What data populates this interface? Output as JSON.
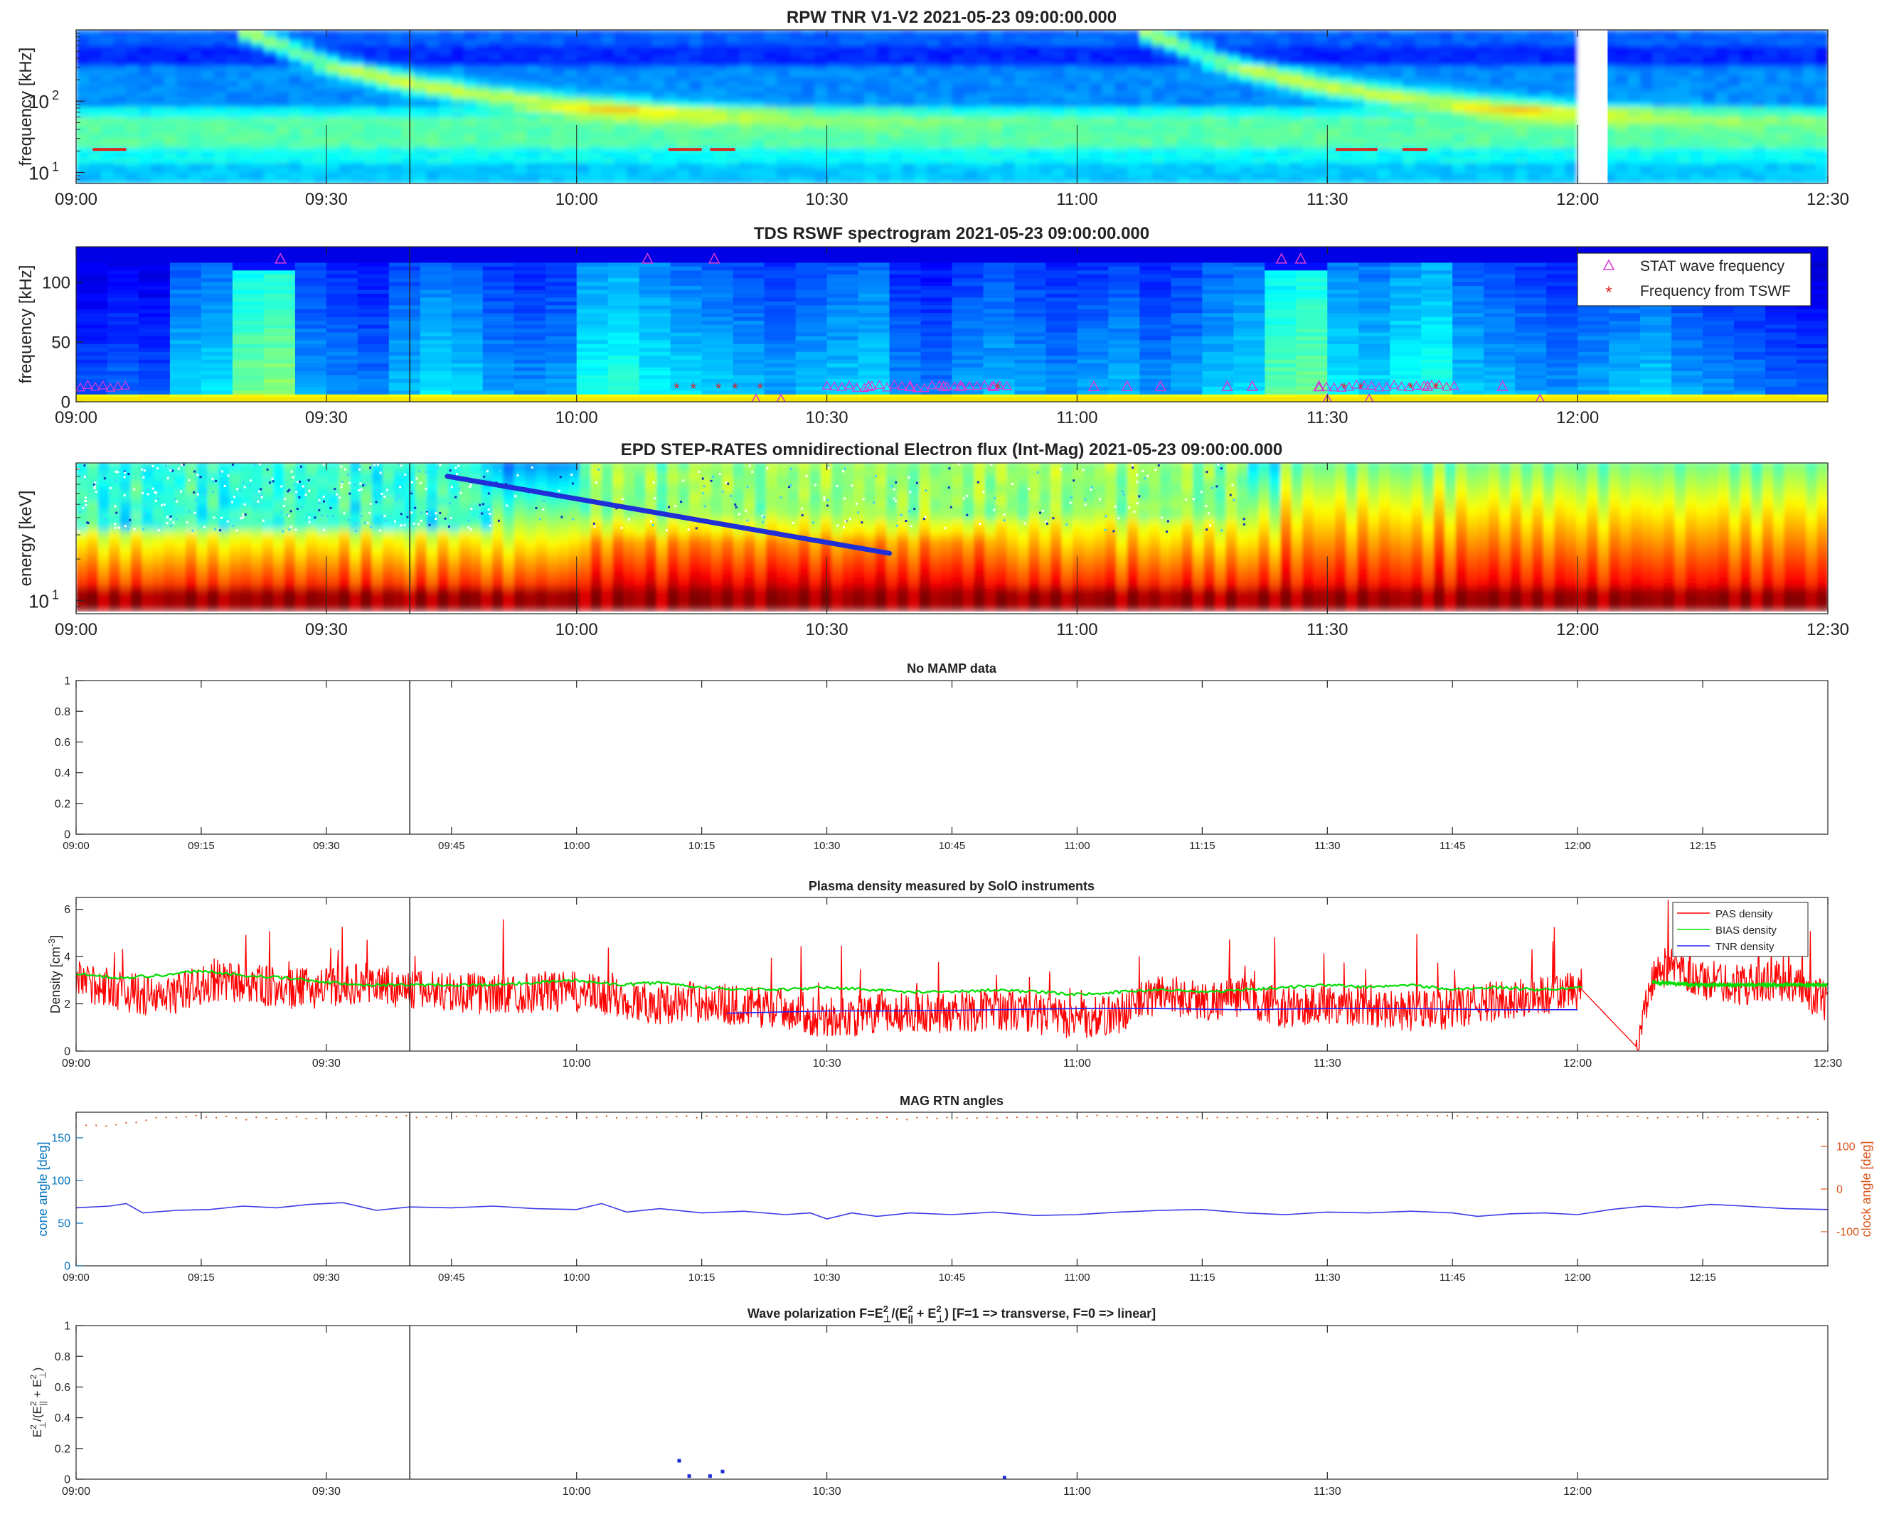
{
  "chart_data": [
    {
      "type": "heatmap",
      "title": "RPW TNR V1-V2 2021-05-23 09:00:00.000",
      "ylabel": "frequency [kHz]",
      "y_scale": "log",
      "y_ticks": [
        {
          "base": "10",
          "exp": "1",
          "value": 10
        },
        {
          "base": "10",
          "exp": "2",
          "value": 100
        }
      ],
      "xlim": [
        0,
        210
      ],
      "ylim": [
        7,
        1000
      ],
      "x_ticks": [
        "09:00",
        "09:30",
        "10:00",
        "10:30",
        "11:00",
        "11:30",
        "12:00",
        "12:30"
      ],
      "x_tick_values": [
        0,
        30,
        60,
        90,
        120,
        150,
        180,
        210
      ],
      "colormap": "jet",
      "data_gaps": [
        [
          179.5,
          182.5
        ]
      ],
      "bursts": [
        {
          "start_min": 20,
          "note": "type III burst drifting from high to low frequency"
        },
        {
          "start_min": 128,
          "note": "type III burst drifting from high to low frequency"
        }
      ],
      "cursor_time": "09:40"
    },
    {
      "type": "heatmap",
      "title": "TDS RSWF spectrogram 2021-05-23 09:00:00.000",
      "ylabel": "frequency [kHz]",
      "ylim": [
        0,
        130
      ],
      "y_ticks": [
        0,
        50,
        100
      ],
      "xlim": [
        0,
        210
      ],
      "x_ticks": [
        "09:00",
        "09:30",
        "10:00",
        "10:30",
        "11:00",
        "11:30",
        "12:00"
      ],
      "x_tick_values": [
        0,
        30,
        60,
        90,
        120,
        150,
        180
      ],
      "legend": [
        "STAT wave frequency",
        "Frequency from TSWF"
      ],
      "legend_location": "top-right",
      "series": [
        {
          "name": "STAT wave frequency",
          "marker": "triangle",
          "color": "#d43cd4",
          "points": [
            [
              24.5,
              120
            ],
            [
              68.5,
              120
            ],
            [
              76.5,
              120
            ],
            [
              144.5,
              120
            ],
            [
              146.8,
              120
            ],
            [
              81.5,
              2
            ],
            [
              84.5,
              2
            ],
            [
              155,
              2
            ],
            [
              175.5,
              2
            ],
            [
              150,
              2
            ],
            [
              171,
              13
            ],
            [
              95,
              13
            ],
            [
              100,
              13
            ],
            [
              104,
              13
            ],
            [
              106,
              13
            ],
            [
              110,
              13
            ],
            [
              122,
              13
            ],
            [
              126,
              13
            ],
            [
              130,
              13
            ],
            [
              138,
              13
            ],
            [
              141,
              13
            ],
            [
              149,
              13
            ],
            [
              162,
              13
            ]
          ]
        },
        {
          "name": "Frequency from TSWF",
          "marker": "asterisk",
          "color": "#e02020",
          "points": [
            [
              72,
              12
            ],
            [
              74,
              12
            ],
            [
              77,
              12
            ],
            [
              79,
              12
            ],
            [
              82,
              12
            ],
            [
              110.5,
              12
            ],
            [
              152,
              12
            ],
            [
              154,
              12
            ],
            [
              160,
              12
            ],
            [
              163,
              12
            ]
          ]
        }
      ],
      "cursor_time": "09:40"
    },
    {
      "type": "heatmap",
      "title": "EPD STEP-RATES omnidirectional Electron flux (Int-Mag) 2021-05-23 09:00:00.000",
      "ylabel": "energy [keV]",
      "y_scale": "log",
      "y_ticks": [
        {
          "base": "10",
          "exp": "1",
          "value": 10
        }
      ],
      "ylim": [
        8,
        100
      ],
      "xlim": [
        0,
        210
      ],
      "x_ticks": [
        "09:00",
        "09:30",
        "10:00",
        "10:30",
        "11:00",
        "11:30",
        "12:00",
        "12:30"
      ],
      "x_tick_values": [
        0,
        30,
        60,
        90,
        120,
        150,
        180,
        210
      ],
      "colormap": "jet",
      "velocity_dispersion_line": {
        "color": "#1f2ed6",
        "from": [
          44.5,
          80
        ],
        "to": [
          97.5,
          22
        ]
      },
      "cursor_time": "09:40"
    },
    {
      "type": "line",
      "title": "No MAMP data",
      "ylim": [
        0,
        1
      ],
      "y_ticks": [
        "0",
        "0.2",
        "0.4",
        "0.6",
        "0.8",
        "1"
      ],
      "y_tick_values": [
        0,
        0.2,
        0.4,
        0.6,
        0.8,
        1
      ],
      "xlim": [
        0,
        210
      ],
      "x_ticks": [
        "09:00",
        "09:15",
        "09:30",
        "09:45",
        "10:00",
        "10:15",
        "10:30",
        "10:45",
        "11:00",
        "11:15",
        "11:30",
        "11:45",
        "12:00",
        "12:15"
      ],
      "x_tick_values": [
        0,
        15,
        30,
        45,
        60,
        75,
        90,
        105,
        120,
        135,
        150,
        165,
        180,
        195
      ],
      "series": [],
      "cursor_time": "09:40"
    },
    {
      "type": "line",
      "title": "Plasma density measured by SolO instruments",
      "ylabel_parts": [
        "Density [cm",
        "-3",
        "]"
      ],
      "ylim": [
        0,
        6.5
      ],
      "y_ticks": [
        "0",
        "2",
        "4",
        "6"
      ],
      "y_tick_values": [
        0,
        2,
        4,
        6
      ],
      "xlim": [
        0,
        210
      ],
      "x_ticks": [
        "09:00",
        "09:30",
        "10:00",
        "10:30",
        "11:00",
        "11:30",
        "12:00",
        "12:30"
      ],
      "x_tick_values": [
        0,
        30,
        60,
        90,
        120,
        150,
        180,
        210
      ],
      "legend": [
        "PAS density",
        "BIAS density",
        "TNR density"
      ],
      "legend_location": "top-right",
      "series": [
        {
          "name": "PAS density",
          "color": "#ff0000",
          "x": [
            0,
            5,
            10,
            15,
            20,
            25,
            30,
            35,
            40,
            45,
            50,
            55,
            60,
            65,
            70,
            75,
            80,
            85,
            90,
            95,
            100,
            105,
            110,
            115,
            120,
            125,
            130,
            135,
            140,
            145,
            150,
            155,
            160,
            165,
            170,
            175,
            180.5,
            187,
            189,
            190,
            195,
            200,
            205,
            210
          ],
          "y": [
            3.0,
            2.6,
            2.2,
            2.8,
            2.9,
            2.6,
            2.7,
            2.9,
            2.6,
            2.5,
            2.4,
            2.5,
            2.5,
            2.2,
            2.0,
            2.1,
            1.9,
            1.8,
            1.4,
            1.5,
            1.7,
            1.6,
            1.8,
            1.6,
            1.3,
            1.6,
            2.5,
            2.1,
            2.3,
            1.8,
            2.0,
            1.9,
            1.7,
            1.8,
            2.1,
            2.3,
            2.6,
            0.2,
            3.0,
            3.6,
            3.0,
            2.8,
            3.0,
            2.0
          ],
          "noise": 1.1
        },
        {
          "name": "BIAS density",
          "color": "#00dd00",
          "x": [
            0,
            5,
            10,
            15,
            20,
            25,
            30,
            35,
            40,
            45,
            50,
            55,
            60,
            65,
            70,
            75,
            80,
            85,
            90,
            95,
            100,
            105,
            110,
            115,
            120,
            125,
            130,
            135,
            140,
            145,
            150,
            155,
            160,
            165,
            170,
            175,
            180.5
          ],
          "y": [
            3.3,
            3.1,
            3.2,
            3.4,
            3.2,
            3.1,
            2.9,
            2.8,
            2.8,
            2.8,
            2.8,
            2.9,
            3.0,
            2.8,
            2.9,
            2.7,
            2.6,
            2.6,
            2.7,
            2.6,
            2.5,
            2.5,
            2.6,
            2.5,
            2.4,
            2.5,
            2.6,
            2.5,
            2.6,
            2.7,
            2.8,
            2.7,
            2.8,
            2.6,
            2.7,
            2.6,
            2.7
          ],
          "noise": 0.12
        },
        {
          "name": "BIAS density (after gap)",
          "color": "#00dd00",
          "x": [
            189,
            195,
            200,
            205,
            210
          ],
          "y": [
            2.9,
            2.8,
            2.8,
            2.8,
            2.8
          ],
          "noise": 0.1
        },
        {
          "name": "TNR density",
          "color": "#2020ff",
          "x": [
            78,
            90,
            100,
            110,
            120,
            130,
            140,
            150,
            160,
            170,
            180
          ],
          "y": [
            1.6,
            1.7,
            1.7,
            1.75,
            1.8,
            1.8,
            1.75,
            1.8,
            1.8,
            1.75,
            1.75
          ],
          "noise": 0
        }
      ],
      "cursor_time": "09:40"
    },
    {
      "type": "line",
      "title": "MAG RTN angles",
      "ylabel": "cone angle [deg]",
      "y2label": "clock angle [deg]",
      "ylim": [
        0,
        180
      ],
      "y_ticks": [
        "0",
        "50",
        "100",
        "150"
      ],
      "y_tick_values": [
        0,
        50,
        100,
        150
      ],
      "y2lim": [
        -180,
        180
      ],
      "y2_ticks": [
        "-100",
        "0",
        "100"
      ],
      "y2_tick_values": [
        -100,
        0,
        100
      ],
      "xlim": [
        0,
        210
      ],
      "x_ticks": [
        "09:00",
        "09:15",
        "09:30",
        "09:45",
        "10:00",
        "10:15",
        "10:30",
        "10:45",
        "11:00",
        "11:15",
        "11:30",
        "11:45",
        "12:00",
        "12:15"
      ],
      "x_tick_values": [
        0,
        15,
        30,
        45,
        60,
        75,
        90,
        105,
        120,
        135,
        150,
        165,
        180,
        195
      ],
      "left_axis_color": "#0072bd",
      "right_axis_color": "#d95319",
      "series": [
        {
          "name": "cone angle",
          "axis": "left",
          "color": "#3a3ae6",
          "x": [
            0,
            4,
            6,
            8,
            12,
            16,
            20,
            24,
            28,
            32,
            36,
            40,
            45,
            50,
            55,
            60,
            63,
            66,
            70,
            75,
            80,
            85,
            88,
            90,
            93,
            96,
            100,
            105,
            110,
            115,
            120,
            125,
            130,
            135,
            140,
            145,
            150,
            155,
            160,
            165,
            168,
            172,
            176,
            180,
            184,
            188,
            192,
            196,
            200,
            205,
            210
          ],
          "y": [
            68,
            70,
            73,
            62,
            65,
            66,
            70,
            68,
            72,
            74,
            65,
            69,
            68,
            70,
            67,
            66,
            73,
            63,
            67,
            62,
            64,
            60,
            62,
            55,
            62,
            58,
            62,
            60,
            63,
            59,
            60,
            63,
            65,
            66,
            62,
            60,
            63,
            62,
            64,
            62,
            58,
            61,
            62,
            60,
            66,
            70,
            68,
            72,
            70,
            67,
            66
          ]
        },
        {
          "name": "clock angle",
          "axis": "right",
          "color": "#d95319",
          "dotted": true,
          "x": [
            0,
            4,
            8,
            10,
            14,
            20,
            30,
            40,
            60,
            80,
            100,
            120,
            140,
            160,
            180,
            200,
            210
          ],
          "y": [
            150,
            145,
            160,
            168,
            172,
            165,
            168,
            170,
            168,
            170,
            165,
            170,
            168,
            170,
            168,
            170,
            165
          ]
        }
      ],
      "cursor_time": "09:40"
    },
    {
      "type": "scatter",
      "title": "Wave polarization F=E⊥²/(E∥² + E⊥²) [F=1 => transverse, F=0 => linear]",
      "title_parts": [
        "Wave polarization  F=E",
        "2",
        "⊥",
        "/(E",
        "2",
        "||",
        " + E",
        "2",
        "⊥",
        ") [F=1 => transverse, F=0 => linear]"
      ],
      "ylabel_parts": [
        "E",
        "2",
        "⊥",
        "/(E",
        "2",
        "||",
        " + E",
        "2",
        "⊥",
        ")"
      ],
      "ylim": [
        0,
        1
      ],
      "y_ticks": [
        "0",
        "0.2",
        "0.4",
        "0.6",
        "0.8",
        "1"
      ],
      "y_tick_values": [
        0,
        0.2,
        0.4,
        0.6,
        0.8,
        1
      ],
      "xlim": [
        0,
        210
      ],
      "x_ticks": [
        "09:00",
        "09:30",
        "10:00",
        "10:30",
        "11:00",
        "11:30",
        "12:00"
      ],
      "x_tick_values": [
        0,
        30,
        60,
        90,
        120,
        150,
        180
      ],
      "series": [
        {
          "name": "polarization",
          "color": "#1f2ed6",
          "x": [
            72.3,
            73.5,
            76.0,
            77.5,
            111.3
          ],
          "y": [
            0.12,
            0.02,
            0.02,
            0.05,
            0.01
          ]
        }
      ],
      "cursor_time": "09:40"
    }
  ]
}
